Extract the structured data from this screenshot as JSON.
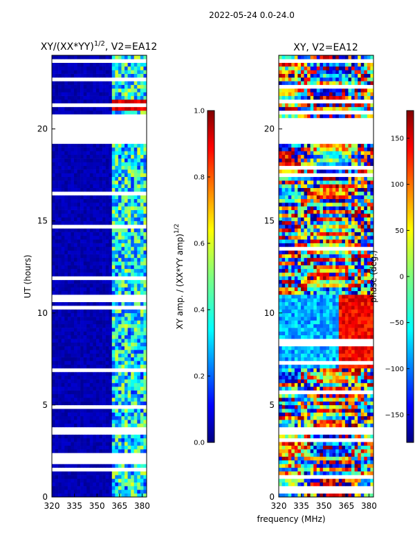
{
  "figure": {
    "suptitle": "2022-05-24 0.0-24.0",
    "shared_xlabel": "frequency (MHz)"
  },
  "chart_data": [
    {
      "type": "heatmap",
      "title": "XY/(XX*YY)^1/2, V2=EA12",
      "ylabel": "UT (hours)",
      "xlabel": "",
      "xlim": [
        320,
        383
      ],
      "ylim": [
        0,
        24
      ],
      "xticks": [
        320,
        335,
        350,
        365,
        380
      ],
      "yticks": [
        0,
        5,
        10,
        15,
        20
      ],
      "colorbar": {
        "label": "XY amp. / (XX*YY amp)^1/2",
        "range": [
          0.0,
          1.0
        ],
        "ticks": [
          "0.0",
          "0.2",
          "0.4",
          "0.6",
          "0.8",
          "1.0"
        ],
        "colormap": "jet"
      },
      "gaps_hours": [
        [
          19.3,
          20.6
        ],
        [
          3.5,
          3.8
        ]
      ],
      "description_values": {
        "below_360MHz": 0.05,
        "band_361_382MHz": 0.35,
        "hot_row_hour": 21.3
      }
    },
    {
      "type": "heatmap",
      "title": "XY, V2=EA12",
      "ylabel": "",
      "xlabel": "",
      "xlim": [
        320,
        383
      ],
      "ylim": [
        0,
        24
      ],
      "xticks": [
        320,
        335,
        350,
        365,
        380
      ],
      "yticks": [
        0,
        5,
        10,
        15,
        20
      ],
      "colorbar": {
        "label": "phase (deg.)",
        "range": [
          -180,
          180
        ],
        "ticks": [
          "−150",
          "−100",
          "−50",
          "0",
          "50",
          "100",
          "150"
        ],
        "colormap": "jet"
      },
      "gaps_hours": [
        [
          19.3,
          20.6
        ],
        [
          3.5,
          3.8
        ]
      ]
    }
  ],
  "colors": {
    "jet": [
      "#00007f",
      "#0000ff",
      "#007fff",
      "#00ffff",
      "#7fff7f",
      "#ffff00",
      "#ff7f00",
      "#ff0000",
      "#7f0000"
    ]
  },
  "labels": {
    "left_title": "XY/(XX*YY)",
    "left_title_sup": "1/2",
    "left_title_tail": ", V2=EA12",
    "right_title": "XY, V2=EA12",
    "ylabel": "UT (hours)",
    "cbar1_label": "XY amp. / (XX*YY amp)",
    "cbar1_label_sup": "1/2",
    "cbar2_label": "phase (deg.)"
  }
}
